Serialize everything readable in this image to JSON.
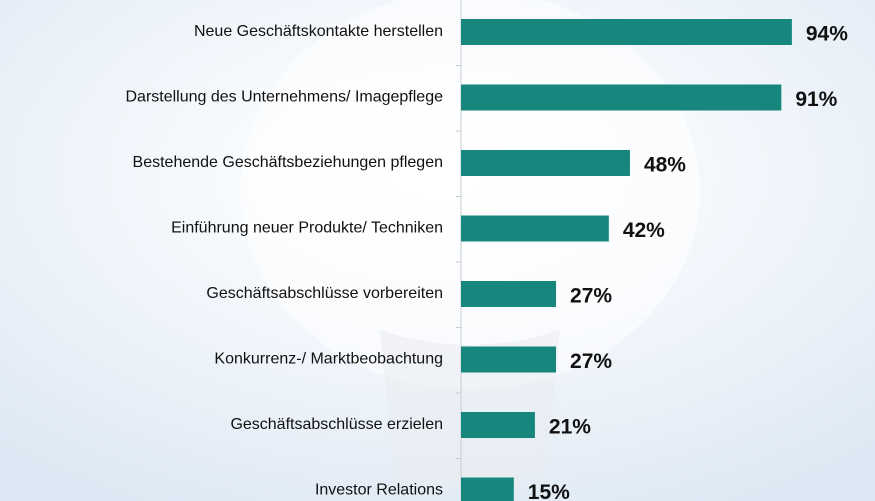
{
  "chart_data": {
    "type": "bar",
    "orientation": "horizontal",
    "categories": [
      "Neue Geschäftskontakte herstellen",
      "Darstellung des Unternehmens/ Imagepflege",
      "Bestehende Geschäftsbeziehungen pflegen",
      "Einführung neuer Produkte/ Techniken",
      "Geschäftsabschlüsse vorbereiten",
      "Konkurrenz-/ Marktbeobachtung",
      "Geschäftsabschlüsse erzielen",
      "Investor Relations"
    ],
    "values": [
      94,
      91,
      48,
      42,
      27,
      27,
      21,
      15
    ],
    "value_labels": [
      "94%",
      "91%",
      "48%",
      "42%",
      "27%",
      "27%",
      "21%",
      "15%"
    ],
    "color": "#17877d"
  }
}
